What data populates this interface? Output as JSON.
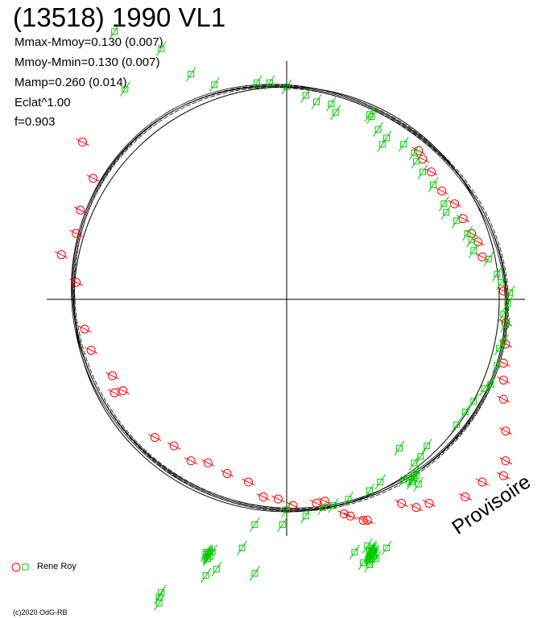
{
  "chart_data": {
    "type": "scatter",
    "title": "(13518) 1990 VL1",
    "stats": [
      "Mmax-Mmoy=0.130 (0.007)",
      "Mmoy-Mmin=0.130 (0.007)",
      "Mamp=0.260 (0.014)",
      "Eclat^1.00",
      "f=0.903"
    ],
    "polar": true,
    "reference_circle_radius": 1.0,
    "series": [
      {
        "name": "Rene Roy",
        "marker": "circle",
        "color": "#ff0000",
        "points": [
          [
            -0.96,
            0.74
          ],
          [
            -0.91,
            0.57
          ],
          [
            -0.97,
            0.42
          ],
          [
            -0.99,
            0.31
          ],
          [
            -1.06,
            0.21
          ],
          [
            -0.99,
            0.08
          ],
          [
            -0.95,
            -0.14
          ],
          [
            -0.92,
            -0.24
          ],
          [
            -0.82,
            -0.36
          ],
          [
            -0.81,
            -0.44
          ],
          [
            -0.77,
            -0.43
          ],
          [
            -0.62,
            -0.65
          ],
          [
            -0.53,
            -0.69
          ],
          [
            -0.45,
            -0.76
          ],
          [
            -0.37,
            -0.77
          ],
          [
            -0.28,
            -0.82
          ],
          [
            -0.18,
            -0.86
          ],
          [
            -0.11,
            -0.93
          ],
          [
            -0.04,
            -0.94
          ],
          [
            0.03,
            -0.97
          ],
          [
            0.14,
            -0.96
          ],
          [
            0.18,
            -0.95
          ],
          [
            0.27,
            -1.01
          ],
          [
            0.3,
            -1.02
          ],
          [
            0.36,
            -1.04
          ],
          [
            0.38,
            -1.04
          ],
          [
            0.54,
            -0.96
          ],
          [
            0.61,
            -0.98
          ],
          [
            0.67,
            -0.96
          ],
          [
            0.84,
            -0.93
          ],
          [
            0.92,
            -0.86
          ],
          [
            1.02,
            -0.83
          ],
          [
            1.03,
            -0.76
          ],
          [
            1.03,
            -0.62
          ],
          [
            1.02,
            -0.47
          ],
          [
            1.02,
            -0.38
          ],
          [
            1.02,
            -0.3
          ],
          [
            1.03,
            -0.21
          ],
          [
            1.03,
            -0.11
          ],
          [
            1.02,
            0.04
          ],
          [
            0.92,
            0.2
          ],
          [
            0.9,
            0.27
          ],
          [
            0.87,
            0.31
          ],
          [
            0.83,
            0.38
          ],
          [
            0.79,
            0.45
          ],
          [
            0.73,
            0.51
          ],
          [
            0.68,
            0.6
          ],
          [
            0.64,
            0.66
          ],
          [
            0.62,
            0.7
          ]
        ]
      },
      {
        "name": "Rene Roy",
        "marker": "square",
        "color": "#00cc00",
        "points": [
          [
            -0.81,
            1.26
          ],
          [
            -0.59,
            1.18
          ],
          [
            -0.45,
            1.06
          ],
          [
            -0.76,
            0.99
          ],
          [
            -0.34,
            1.01
          ],
          [
            -0.14,
            1.02
          ],
          [
            -0.08,
            1.02
          ],
          [
            0.0,
            1.0
          ],
          [
            0.09,
            0.96
          ],
          [
            0.14,
            0.93
          ],
          [
            0.21,
            0.92
          ],
          [
            0.23,
            0.88
          ],
          [
            0.39,
            0.87
          ],
          [
            0.4,
            0.86
          ],
          [
            0.43,
            0.8
          ],
          [
            0.47,
            0.76
          ],
          [
            0.45,
            0.73
          ],
          [
            0.55,
            0.73
          ],
          [
            0.6,
            0.69
          ],
          [
            0.61,
            0.65
          ],
          [
            0.64,
            0.6
          ],
          [
            0.69,
            0.54
          ],
          [
            0.74,
            0.45
          ],
          [
            0.75,
            0.41
          ],
          [
            0.8,
            0.37
          ],
          [
            0.85,
            0.31
          ],
          [
            0.87,
            0.28
          ],
          [
            0.88,
            0.23
          ],
          [
            0.95,
            0.19
          ],
          [
            0.99,
            0.12
          ],
          [
            1.01,
            0.08
          ],
          [
            1.05,
            0.03
          ],
          [
            1.04,
            -0.02
          ],
          [
            1.02,
            -0.07
          ],
          [
            1.03,
            -0.12
          ],
          [
            1.02,
            -0.2
          ],
          [
            1.0,
            -0.23
          ],
          [
            0.99,
            -0.31
          ],
          [
            0.96,
            -0.4
          ],
          [
            0.93,
            -0.42
          ],
          [
            0.88,
            -0.48
          ],
          [
            0.84,
            -0.53
          ],
          [
            0.8,
            -0.59
          ],
          [
            0.66,
            -0.69
          ],
          [
            0.63,
            -0.74
          ],
          [
            0.6,
            -0.77
          ],
          [
            0.55,
            -0.85
          ],
          [
            0.44,
            -0.86
          ],
          [
            0.39,
            -0.9
          ],
          [
            0.29,
            -0.94
          ],
          [
            0.22,
            -0.97
          ],
          [
            0.17,
            -0.98
          ],
          [
            0.09,
            -1.02
          ],
          [
            0.0,
            -0.99
          ],
          [
            -0.02,
            -1.06
          ],
          [
            -0.15,
            -1.06
          ],
          [
            -0.21,
            -1.17
          ],
          [
            -0.37,
            -1.19
          ],
          [
            -0.15,
            -1.29
          ],
          [
            -0.33,
            -1.27
          ],
          [
            -0.59,
            -1.38
          ],
          [
            -0.6,
            -1.4
          ],
          [
            0.36,
            -1.24
          ],
          [
            0.39,
            -1.25
          ],
          [
            -0.38,
            -1.3
          ],
          [
            -0.6,
            -1.43
          ],
          [
            0.4,
            -1.18
          ],
          [
            0.39,
            -1.19
          ],
          [
            0.4,
            -1.17
          ],
          [
            0.47,
            -1.17
          ],
          [
            0.62,
            -0.87
          ],
          [
            0.53,
            -0.7
          ],
          [
            0.61,
            -0.83
          ],
          [
            0.59,
            -0.84
          ],
          [
            0.6,
            -0.84
          ],
          [
            0.6,
            -0.82
          ],
          [
            0.6,
            -0.84
          ],
          [
            0.59,
            -0.86
          ],
          [
            0.59,
            -0.85
          ],
          [
            0.6,
            -0.84
          ],
          [
            0.32,
            -1.19
          ],
          [
            0.38,
            -1.16
          ],
          [
            0.4,
            -1.18
          ],
          [
            0.4,
            -1.19
          ],
          [
            0.39,
            -1.18
          ],
          [
            0.39,
            -1.2
          ],
          [
            0.41,
            -1.2
          ],
          [
            0.41,
            -1.19
          ],
          [
            0.4,
            -1.21
          ],
          [
            0.41,
            -1.21
          ],
          [
            0.4,
            -1.2
          ],
          [
            -0.37,
            -1.22
          ],
          [
            -0.37,
            -1.21
          ],
          [
            -0.35,
            -1.19
          ],
          [
            -0.37,
            -1.2
          ],
          [
            -0.37,
            -1.19
          ],
          [
            -0.38,
            -1.19
          ],
          [
            -0.36,
            -1.21
          ],
          [
            -0.37,
            -1.22
          ],
          [
            -0.38,
            -1.2
          ],
          [
            -0.37,
            -1.2
          ],
          [
            -0.37,
            -1.21
          ],
          [
            0.42,
            -1.22
          ],
          [
            0.4,
            -1.21
          ],
          [
            0.4,
            -1.22
          ],
          [
            0.41,
            -1.2
          ],
          [
            0.4,
            -1.2
          ],
          [
            0.39,
            -1.21
          ]
        ]
      }
    ],
    "legend": {
      "label": "Rene Roy",
      "placement": "bottom-left"
    }
  },
  "watermark": "Provisoire",
  "credit": "(c)2020 OdG-RB"
}
